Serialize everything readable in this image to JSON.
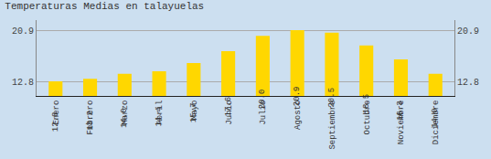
{
  "chart_data": {
    "type": "bar",
    "title": "Temperaturas Medias en talayuelas",
    "categories": [
      "Enero",
      "Febrero",
      "Marzo",
      "Abril",
      "Mayo",
      "Junio",
      "Julio",
      "Agosto",
      "Septiembre",
      "Octubre",
      "Noviembre",
      "Diciembre"
    ],
    "values": [
      12.8,
      13.2,
      14.0,
      14.4,
      15.7,
      17.6,
      20.0,
      20.9,
      20.5,
      18.5,
      16.3,
      14.0
    ],
    "value_labels": [
      "12.8",
      "13.2",
      "14.0",
      "14.4",
      "15.7",
      "17.6",
      "20.0",
      "20.9",
      "20.5",
      "18.5",
      "16.3",
      "14.0"
    ],
    "color": "#FFD700",
    "ylim": [
      10.5,
      22.5
    ],
    "yticks": [
      12.8,
      20.9
    ],
    "y2lim": [
      10.5,
      22.5
    ],
    "y2ticks": [
      12.8,
      20.9
    ],
    "grid": true,
    "data_labels": true
  }
}
